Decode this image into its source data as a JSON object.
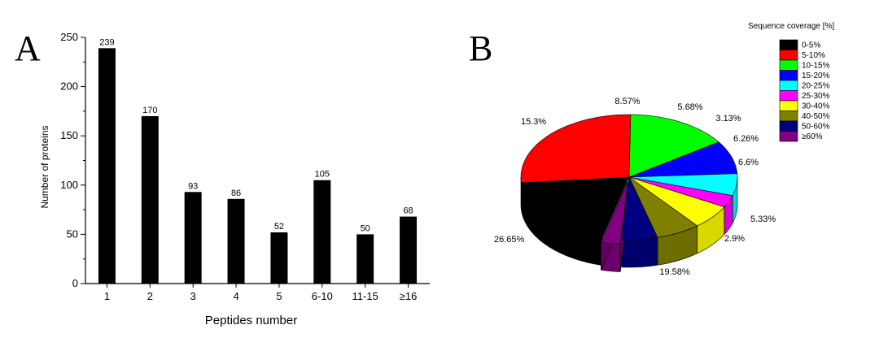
{
  "panels": {
    "a_label": "A",
    "b_label": "B"
  },
  "chart_data": [
    {
      "type": "bar",
      "panel": "A",
      "title": "",
      "xlabel": "Peptides number",
      "ylabel": "Number of proteins",
      "categories": [
        "1",
        "2",
        "3",
        "4",
        "5",
        "6-10",
        "11-15",
        "≥16"
      ],
      "values": [
        239,
        170,
        93,
        86,
        52,
        105,
        50,
        68
      ],
      "data_labels": [
        "239",
        "170",
        "93",
        "86",
        "52",
        "105",
        "50",
        "68"
      ],
      "ylim": [
        0,
        250
      ],
      "yticks": [
        0,
        50,
        100,
        150,
        200,
        250
      ],
      "grid": false,
      "bar_color": "#000000"
    },
    {
      "type": "pie",
      "panel": "B",
      "style": "3d-exploded",
      "legend_title": "Sequence coverage [%]",
      "legend_position": "top-right",
      "slices": [
        {
          "label": "0-5%",
          "value": 19.58,
          "text": "19.58%",
          "color": "#000000"
        },
        {
          "label": "5-10%",
          "value": 26.65,
          "text": "26.65%",
          "color": "#ff0000"
        },
        {
          "label": "10-15%",
          "value": 15.3,
          "text": "15.3%",
          "color": "#00ff00"
        },
        {
          "label": "15-20%",
          "value": 8.57,
          "text": "8.57%",
          "color": "#0000ff"
        },
        {
          "label": "20-25%",
          "value": 5.68,
          "text": "5.68%",
          "color": "#00ffff"
        },
        {
          "label": "25-30%",
          "value": 3.13,
          "text": "3.13%",
          "color": "#ff00ff"
        },
        {
          "label": "30-40%",
          "value": 6.26,
          "text": "6.26%",
          "color": "#ffff00"
        },
        {
          "label": "40-50%",
          "value": 6.6,
          "text": "6.6%",
          "color": "#808000"
        },
        {
          "label": "50-60%",
          "value": 5.33,
          "text": "5.33%",
          "color": "#000080"
        },
        {
          "label": "≥60%",
          "value": 2.9,
          "text": "2.9%",
          "color": "#800080"
        }
      ]
    }
  ]
}
